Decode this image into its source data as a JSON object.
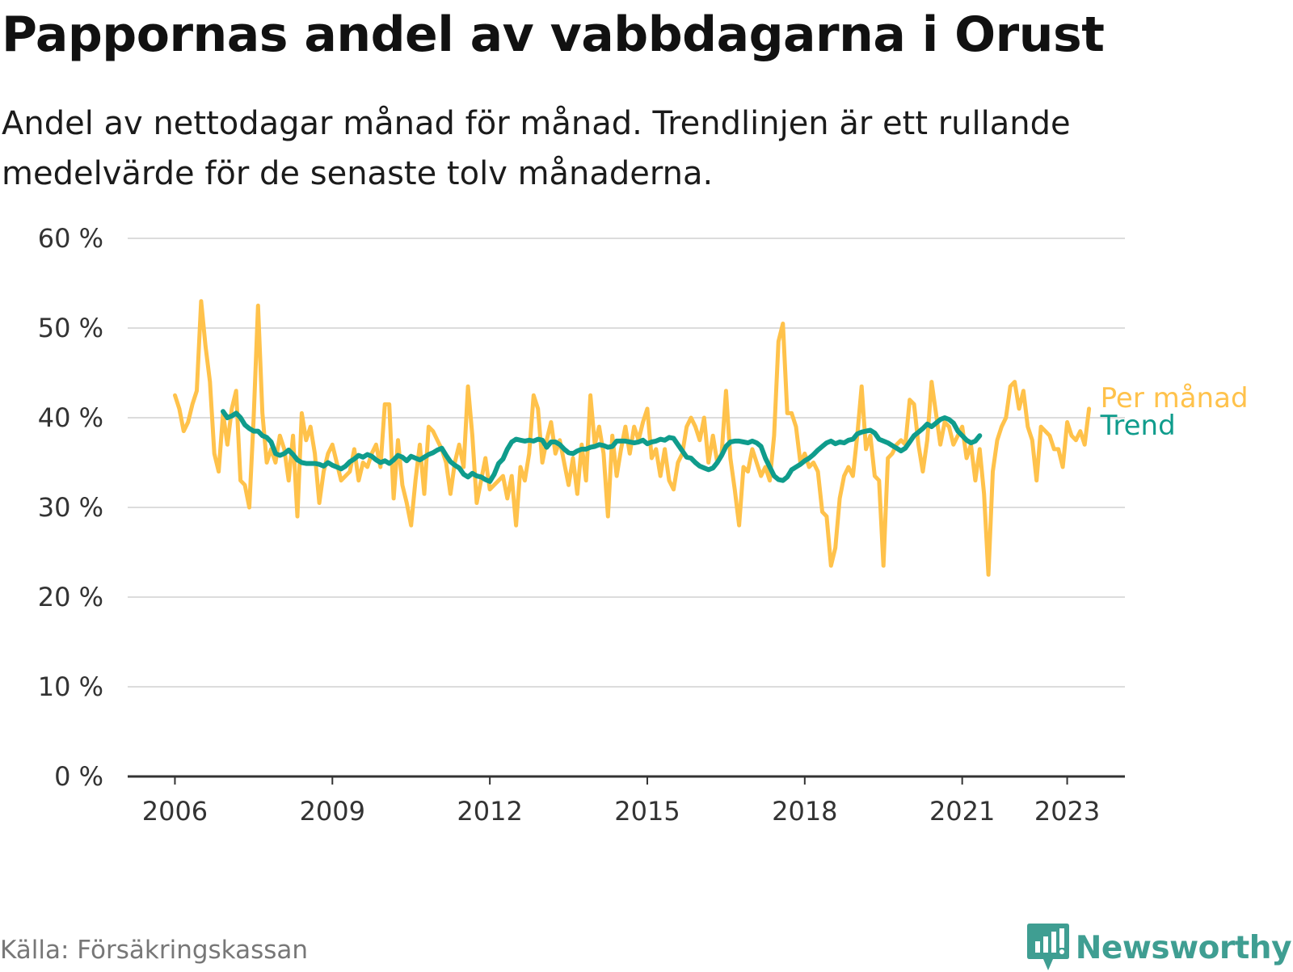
{
  "title": "Pappornas andel av vabbdagarna i Orust",
  "subtitle": "Andel av nettodagar månad för månad. Trendlinjen är ett rullande medelvärde för de senaste tolv månaderna.",
  "source": "Källa: Försäkringskassan",
  "brand": "Newsworthy",
  "colors": {
    "monthly": "#ffc24b",
    "trend": "#0f9c8c",
    "grid": "#dcdcdc",
    "axis": "#333333",
    "brand": "#3f9e92"
  },
  "chart_data": {
    "type": "line",
    "ylim": [
      0,
      60
    ],
    "yticks": [
      0,
      10,
      20,
      30,
      40,
      50,
      60
    ],
    "ytick_labels": [
      "0 %",
      "10 %",
      "20 %",
      "30 %",
      "40 %",
      "50 %",
      "60 %"
    ],
    "xlim": [
      2005.1,
      2024.1
    ],
    "xticks": [
      2006,
      2009,
      2012,
      2015,
      2018,
      2021,
      2023
    ],
    "xtick_labels": [
      "2006",
      "2009",
      "2012",
      "2015",
      "2018",
      "2021",
      "2023"
    ],
    "grid": true,
    "series": [
      {
        "name": "Per månad",
        "x_start": 2006.0,
        "step": 0.083333,
        "values": [
          42.5,
          41.0,
          38.5,
          39.5,
          41.5,
          43.0,
          53.0,
          48.0,
          44.0,
          36.0,
          34.0,
          40.5,
          37.0,
          41.0,
          43.0,
          33.0,
          32.5,
          30.0,
          40.0,
          52.5,
          40.5,
          35.0,
          36.5,
          35.0,
          38.0,
          36.5,
          33.0,
          38.0,
          29.0,
          40.5,
          37.5,
          39.0,
          36.0,
          30.5,
          34.0,
          36.0,
          37.0,
          35.0,
          33.0,
          33.5,
          34.0,
          36.5,
          33.0,
          35.0,
          34.5,
          36.0,
          37.0,
          34.5,
          41.5,
          41.5,
          31.0,
          37.5,
          32.5,
          30.5,
          28.0,
          33.0,
          37.0,
          31.5,
          39.0,
          38.5,
          37.5,
          36.5,
          35.0,
          31.5,
          35.0,
          37.0,
          34.5,
          43.5,
          38.0,
          30.5,
          33.0,
          35.5,
          32.0,
          32.5,
          33.0,
          33.5,
          31.0,
          33.5,
          28.0,
          34.5,
          33.0,
          36.0,
          42.5,
          41.0,
          35.0,
          37.5,
          39.5,
          36.0,
          37.5,
          35.0,
          32.5,
          35.5,
          31.5,
          37.0,
          33.0,
          42.5,
          37.0,
          39.0,
          36.0,
          29.0,
          38.0,
          33.5,
          36.5,
          39.0,
          36.0,
          39.0,
          37.5,
          39.5,
          41.0,
          35.5,
          36.5,
          33.5,
          36.5,
          33.0,
          32.0,
          35.0,
          36.0,
          39.0,
          40.0,
          39.0,
          37.5,
          40.0,
          35.0,
          38.0,
          35.0,
          36.0,
          43.0,
          35.5,
          32.0,
          28.0,
          34.5,
          34.0,
          36.5,
          35.0,
          33.5,
          34.5,
          33.0,
          38.0,
          48.5,
          50.5,
          40.5,
          40.5,
          39.0,
          35.0,
          36.0,
          34.5,
          35.0,
          34.0,
          29.5,
          29.0,
          23.5,
          25.5,
          31.0,
          33.5,
          34.5,
          33.5,
          38.0,
          43.5,
          36.5,
          38.0,
          33.5,
          33.0,
          23.5,
          35.5,
          36.0,
          37.0,
          37.5,
          37.0,
          42.0,
          41.5,
          37.0,
          34.0,
          37.5,
          44.0,
          40.5,
          37.0,
          39.5,
          39.0,
          37.0,
          38.0,
          39.0,
          35.5,
          37.0,
          33.0,
          36.5,
          31.5,
          22.5,
          34.0,
          37.5,
          39.0,
          40.0,
          43.5,
          44.0,
          41.0,
          43.0,
          39.0,
          37.5,
          33.0,
          39.0,
          38.5,
          38.0,
          36.5,
          36.5,
          34.5,
          39.5,
          38.0,
          37.5,
          38.5,
          37.0,
          41.0
        ]
      },
      {
        "name": "Trend",
        "x_start": 2006.917,
        "step": 0.083333,
        "values": [
          40.7,
          40.0,
          40.2,
          40.5,
          40.0,
          39.2,
          38.8,
          38.5,
          38.5,
          38.0,
          37.8,
          37.3,
          36.0,
          35.8,
          36.0,
          36.4,
          35.9,
          35.3,
          35.0,
          34.9,
          34.9,
          34.9,
          34.8,
          34.6,
          35.0,
          34.7,
          34.5,
          34.3,
          34.6,
          35.1,
          35.4,
          35.8,
          35.6,
          35.9,
          35.7,
          35.3,
          35.0,
          35.2,
          34.9,
          35.3,
          35.8,
          35.6,
          35.2,
          35.7,
          35.5,
          35.3,
          35.6,
          35.9,
          36.1,
          36.4,
          36.6,
          35.8,
          35.1,
          34.7,
          34.4,
          33.7,
          33.4,
          33.8,
          33.5,
          33.4,
          33.1,
          32.9,
          33.7,
          34.9,
          35.4,
          36.5,
          37.3,
          37.6,
          37.5,
          37.4,
          37.5,
          37.4,
          37.6,
          37.5,
          36.7,
          37.3,
          37.3,
          37.0,
          36.5,
          36.1,
          36.0,
          36.3,
          36.5,
          36.5,
          36.7,
          36.8,
          37.0,
          36.9,
          36.7,
          36.8,
          37.4,
          37.4,
          37.4,
          37.3,
          37.2,
          37.3,
          37.5,
          37.1,
          37.3,
          37.4,
          37.6,
          37.5,
          37.8,
          37.7,
          37.0,
          36.3,
          35.6,
          35.5,
          35.0,
          34.6,
          34.4,
          34.2,
          34.4,
          35.0,
          35.8,
          36.8,
          37.3,
          37.4,
          37.4,
          37.3,
          37.2,
          37.4,
          37.2,
          36.8,
          35.5,
          34.5,
          33.5,
          33.1,
          33.0,
          33.4,
          34.2,
          34.5,
          34.8,
          35.2,
          35.5,
          35.9,
          36.4,
          36.8,
          37.2,
          37.4,
          37.1,
          37.3,
          37.2,
          37.5,
          37.6,
          38.2,
          38.4,
          38.5,
          38.6,
          38.3,
          37.6,
          37.4,
          37.2,
          36.9,
          36.6,
          36.3,
          36.6,
          37.3,
          38.0,
          38.4,
          38.8,
          39.3,
          39.0,
          39.4,
          39.8,
          40.0,
          39.8,
          39.4,
          38.5,
          38.0,
          37.5,
          37.2,
          37.4,
          38.0
        ]
      }
    ],
    "legend": [
      {
        "label": "Per månad",
        "series": "Per månad"
      },
      {
        "label": "Trend",
        "series": "Trend"
      }
    ]
  }
}
